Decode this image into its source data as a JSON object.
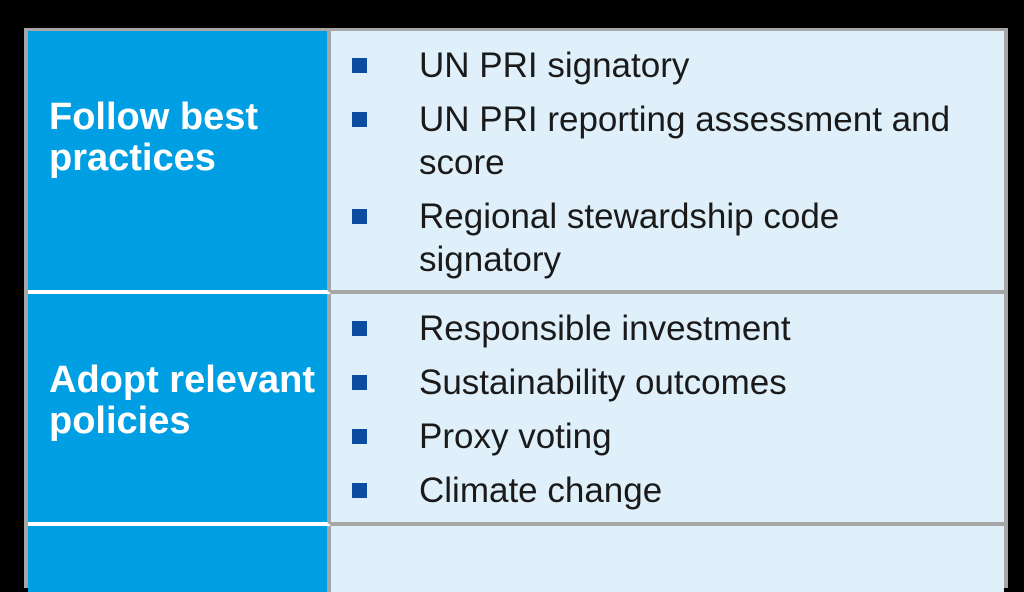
{
  "colors": {
    "page_background": "#000000",
    "header_cell_blue": "#009FE3",
    "body_cell_light_blue": "#DFF0FB",
    "bullet_navy": "#0C4DA2",
    "border_grey": "#A6A6A6",
    "row_divider_white": "#FFFFFF",
    "header_text": "#FFFFFF",
    "body_text": "#1A1A1A"
  },
  "table": {
    "rows": [
      {
        "header": "Follow best practices",
        "items": [
          "UN PRI signatory",
          "UN PRI reporting assessment and score",
          "Regional stewardship code signatory"
        ]
      },
      {
        "header": "Adopt relevant policies",
        "items": [
          "Responsible investment",
          "Sustainability outcomes",
          "Proxy voting",
          "Climate change"
        ]
      },
      {
        "header": "",
        "items": [],
        "truncated": true
      }
    ]
  }
}
